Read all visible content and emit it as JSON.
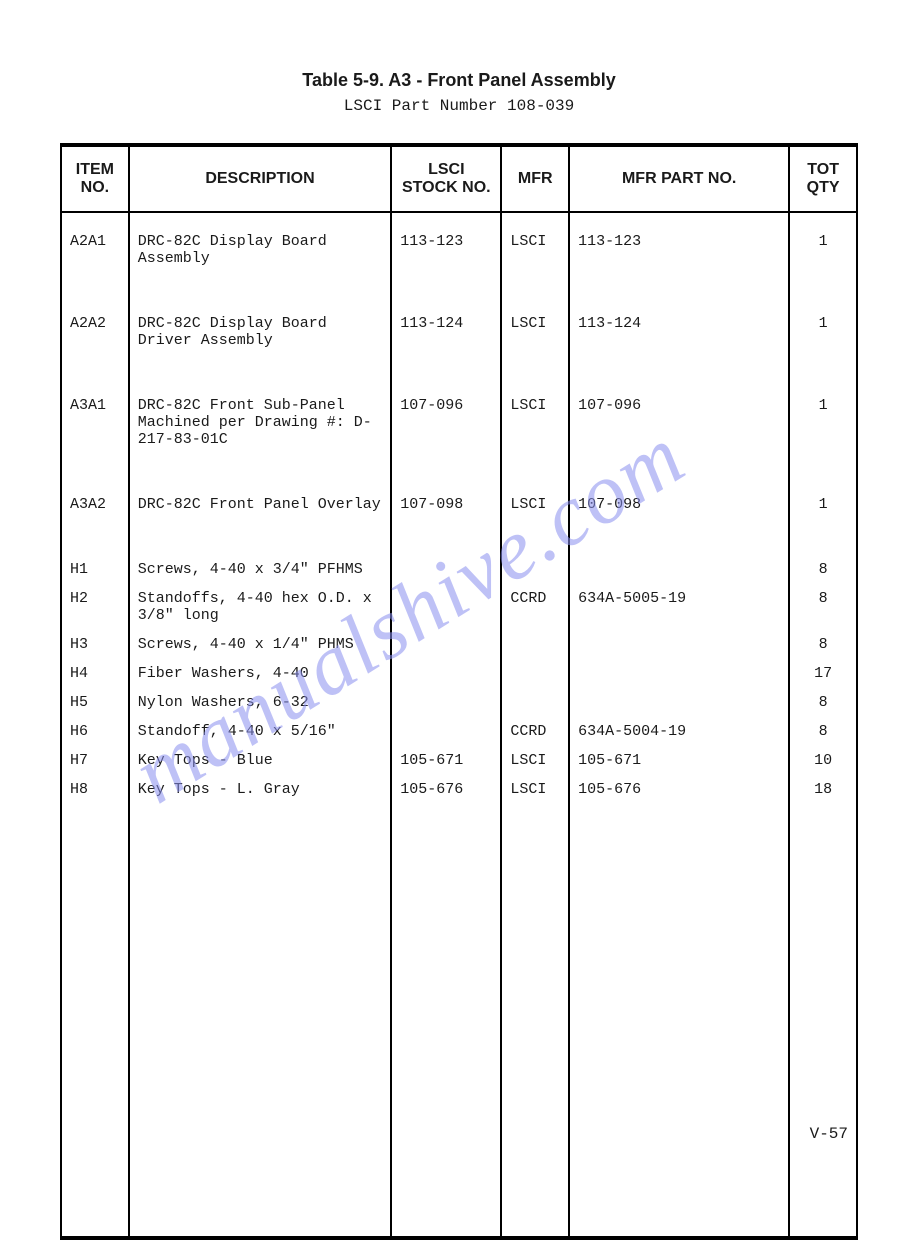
{
  "title": "Table 5-9.  A3 - Front Panel Assembly",
  "subtitle": "LSCI Part Number 108-039",
  "columns": {
    "item": "ITEM NO.",
    "desc": "DESCRIPTION",
    "stock": "LSCI STOCK NO.",
    "mfr": "MFR",
    "part": "MFR PART NO.",
    "qty": "TOT QTY"
  },
  "rows": [
    {
      "item": "A2A1",
      "desc": "DRC-82C Display Board Assembly",
      "stock": "113-123",
      "mfr": "LSCI",
      "part": "113-123",
      "qty": "1"
    },
    {
      "spacer": true
    },
    {
      "item": "A2A2",
      "desc": "DRC-82C Display Board Driver Assembly",
      "stock": "113-124",
      "mfr": "LSCI",
      "part": "113-124",
      "qty": "1"
    },
    {
      "spacer": true
    },
    {
      "item": "A3A1",
      "desc": "DRC-82C Front Sub-Panel Machined per Drawing #: D-217-83-01C",
      "stock": "107-096",
      "mfr": "LSCI",
      "part": "107-096",
      "qty": "1"
    },
    {
      "spacer": true
    },
    {
      "item": "A3A2",
      "desc": "DRC-82C Front Panel Overlay",
      "stock": "107-098",
      "mfr": "LSCI",
      "part": "107-098",
      "qty": "1"
    },
    {
      "spacer": true
    },
    {
      "item": "H1",
      "desc": "Screws, 4-40 x 3/4\" PFHMS",
      "stock": "",
      "mfr": "",
      "part": "",
      "qty": "8"
    },
    {
      "item": "H2",
      "desc": "Standoffs, 4-40 hex O.D. x 3/8\" long",
      "stock": "",
      "mfr": "CCRD",
      "part": "634A-5005-19",
      "qty": "8"
    },
    {
      "item": "H3",
      "desc": "Screws, 4-40 x 1/4\" PHMS",
      "stock": "",
      "mfr": "",
      "part": "",
      "qty": "8"
    },
    {
      "item": "H4",
      "desc": "Fiber Washers, 4-40",
      "stock": "",
      "mfr": "",
      "part": "",
      "qty": "17"
    },
    {
      "item": "H5",
      "desc": "Nylon Washers, 6-32",
      "stock": "",
      "mfr": "",
      "part": "",
      "qty": "8"
    },
    {
      "item": "H6",
      "desc": "Standoff, 4-40 x 5/16\"",
      "stock": "",
      "mfr": "CCRD",
      "part": "634A-5004-19",
      "qty": "8"
    },
    {
      "item": "H7",
      "desc": "Key Tops - Blue",
      "stock": "105-671",
      "mfr": "LSCI",
      "part": "105-671",
      "qty": "10"
    },
    {
      "item": "H8",
      "desc": "Key Tops - L. Gray",
      "stock": "105-676",
      "mfr": "LSCI",
      "part": "105-676",
      "qty": "18"
    }
  ],
  "watermark": "manualshive.com",
  "page_number": "V-57",
  "style": {
    "background": "#ffffff",
    "text_color": "#1a1a1a",
    "border_color": "#000000",
    "watermark_color": "#8a90f0",
    "title_font": "Arial",
    "body_font": "Courier New",
    "title_size_pt": 18,
    "body_size_pt": 15
  }
}
